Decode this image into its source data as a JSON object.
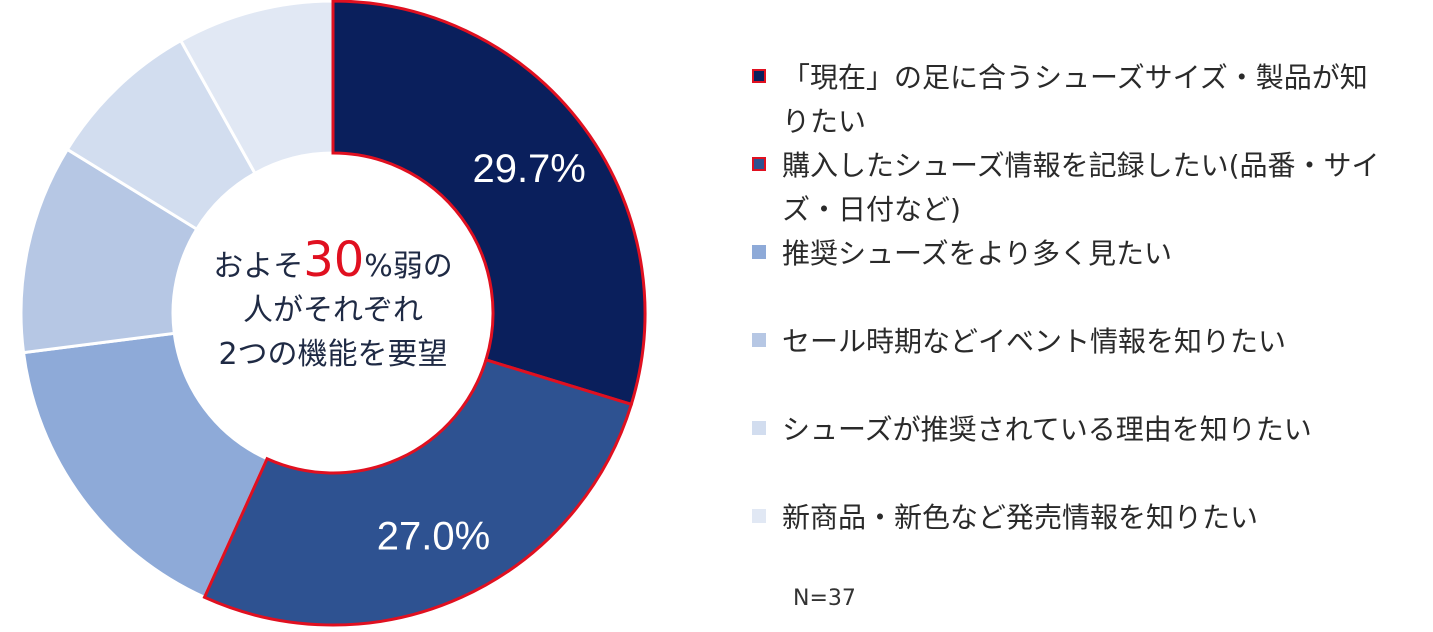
{
  "chart_data": {
    "type": "pie",
    "style": "donut",
    "n_label": "N=37",
    "center_text": {
      "pre": "およそ",
      "highlight": "30",
      "post": "%弱の",
      "line2": "人がそれぞれ",
      "line3": "2つの機能を要望"
    },
    "slices": [
      {
        "label": "「現在」の足に合うシューズサイズ・製品が知りたい",
        "value": 29.7,
        "value_label": "29.7%",
        "color": "#0a1f5c",
        "highlight": true
      },
      {
        "label": "購入したシューズ情報を記録したい(品番・サイズ・日付など)",
        "value": 27.0,
        "value_label": "27.0%",
        "color": "#2e5291",
        "highlight": true
      },
      {
        "label": "推奨シューズをより多く見たい",
        "value": 16.2,
        "value_label": "",
        "color": "#8eaad8",
        "highlight": false
      },
      {
        "label": "セール時期などイベント情報を知りたい",
        "value": 10.8,
        "value_label": "",
        "color": "#b6c7e4",
        "highlight": false
      },
      {
        "label": "シューズが推奨されている理由を知りたい",
        "value": 8.1,
        "value_label": "",
        "color": "#d2ddef",
        "highlight": false
      },
      {
        "label": "新商品・新色など発売情報を知りたい",
        "value": 8.1,
        "value_label": "",
        "color": "#e1e8f4",
        "highlight": false
      }
    ],
    "legend_placement": "right",
    "highlight_border_color": "#e01020"
  }
}
